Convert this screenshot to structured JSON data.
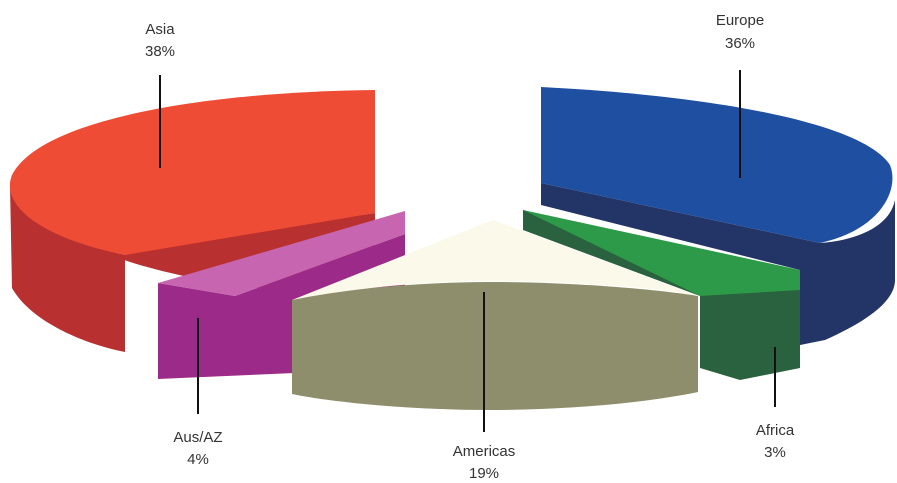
{
  "chart_data": {
    "type": "pie",
    "style": "3d-exploded",
    "title": "",
    "legend": "none",
    "slices": [
      {
        "label": "Asia",
        "value": 38,
        "value_label": "38%",
        "color": "#ef4c36",
        "side_color": "#b93030"
      },
      {
        "label": "Aus/AZ",
        "value": 4,
        "value_label": "4%",
        "color": "#c765b0",
        "side_color": "#9c2a88"
      },
      {
        "label": "Americas",
        "value": 19,
        "value_label": "19%",
        "color": "#fbf9ea",
        "side_color": "#8e8d6c"
      },
      {
        "label": "Africa",
        "value": 3,
        "value_label": "3%",
        "color": "#2c9a48",
        "side_color": "#2a613e"
      },
      {
        "label": "Europe",
        "value": 36,
        "value_label": "36%",
        "color": "#1f4fa0",
        "side_color": "#233466"
      }
    ]
  }
}
